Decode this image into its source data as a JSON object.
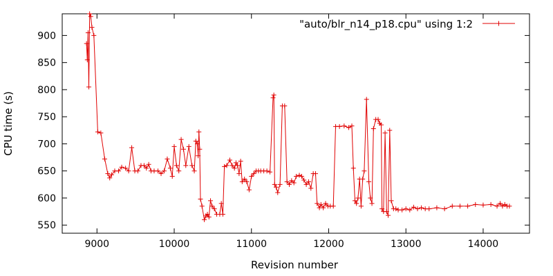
{
  "chart_data": {
    "type": "line",
    "xlabel": "Revision number",
    "ylabel": "CPU time (s)",
    "xlim": [
      8550,
      14600
    ],
    "ylim": [
      535,
      940
    ],
    "x_ticks": [
      9000,
      10000,
      11000,
      12000,
      13000,
      14000
    ],
    "y_ticks": [
      550,
      600,
      650,
      700,
      750,
      800,
      850,
      900
    ],
    "grid": false,
    "legend_position": "top-right",
    "series": [
      {
        "name": "\"auto/blr_n14_p18.cpu\" using 1:2",
        "color": "#e00000",
        "marker": "plus",
        "points": [
          [
            8865,
            885
          ],
          [
            8875,
            855
          ],
          [
            8885,
            905
          ],
          [
            8895,
            805
          ],
          [
            8905,
            940
          ],
          [
            8920,
            935
          ],
          [
            8935,
            915
          ],
          [
            8960,
            900
          ],
          [
            9010,
            722
          ],
          [
            9050,
            720
          ],
          [
            9100,
            672
          ],
          [
            9140,
            645
          ],
          [
            9165,
            637
          ],
          [
            9190,
            643
          ],
          [
            9230,
            650
          ],
          [
            9280,
            650
          ],
          [
            9320,
            657
          ],
          [
            9370,
            655
          ],
          [
            9410,
            650
          ],
          [
            9450,
            693
          ],
          [
            9490,
            650
          ],
          [
            9530,
            650
          ],
          [
            9570,
            660
          ],
          [
            9610,
            660
          ],
          [
            9640,
            655
          ],
          [
            9670,
            662
          ],
          [
            9700,
            650
          ],
          [
            9740,
            650
          ],
          [
            9790,
            650
          ],
          [
            9830,
            645
          ],
          [
            9870,
            650
          ],
          [
            9910,
            672
          ],
          [
            9950,
            655
          ],
          [
            9975,
            640
          ],
          [
            10000,
            695
          ],
          [
            10030,
            660
          ],
          [
            10060,
            650
          ],
          [
            10090,
            708
          ],
          [
            10120,
            690
          ],
          [
            10150,
            660
          ],
          [
            10190,
            695
          ],
          [
            10230,
            660
          ],
          [
            10260,
            650
          ],
          [
            10280,
            705
          ],
          [
            10300,
            700
          ],
          [
            10310,
            678
          ],
          [
            10320,
            722
          ],
          [
            10330,
            690
          ],
          [
            10340,
            598
          ],
          [
            10360,
            585
          ],
          [
            10390,
            560
          ],
          [
            10410,
            567
          ],
          [
            10430,
            570
          ],
          [
            10450,
            565
          ],
          [
            10470,
            595
          ],
          [
            10490,
            585
          ],
          [
            10520,
            580
          ],
          [
            10550,
            570
          ],
          [
            10590,
            570
          ],
          [
            10610,
            590
          ],
          [
            10630,
            570
          ],
          [
            10650,
            658
          ],
          [
            10680,
            660
          ],
          [
            10720,
            670
          ],
          [
            10750,
            660
          ],
          [
            10780,
            655
          ],
          [
            10800,
            665
          ],
          [
            10820,
            660
          ],
          [
            10840,
            645
          ],
          [
            10860,
            668
          ],
          [
            10880,
            630
          ],
          [
            10910,
            635
          ],
          [
            10940,
            630
          ],
          [
            10970,
            615
          ],
          [
            11000,
            640
          ],
          [
            11030,
            645
          ],
          [
            11060,
            650
          ],
          [
            11090,
            650
          ],
          [
            11120,
            650
          ],
          [
            11160,
            650
          ],
          [
            11200,
            650
          ],
          [
            11240,
            648
          ],
          [
            11280,
            785
          ],
          [
            11290,
            790
          ],
          [
            11300,
            625
          ],
          [
            11320,
            620
          ],
          [
            11340,
            610
          ],
          [
            11370,
            625
          ],
          [
            11400,
            770
          ],
          [
            11430,
            770
          ],
          [
            11460,
            630
          ],
          [
            11490,
            625
          ],
          [
            11520,
            632
          ],
          [
            11550,
            628
          ],
          [
            11580,
            640
          ],
          [
            11620,
            642
          ],
          [
            11650,
            640
          ],
          [
            11680,
            633
          ],
          [
            11710,
            625
          ],
          [
            11740,
            630
          ],
          [
            11770,
            618
          ],
          [
            11800,
            645
          ],
          [
            11830,
            645
          ],
          [
            11850,
            590
          ],
          [
            11880,
            582
          ],
          [
            11900,
            588
          ],
          [
            11930,
            582
          ],
          [
            11960,
            590
          ],
          [
            11990,
            585
          ],
          [
            12020,
            585
          ],
          [
            12060,
            585
          ],
          [
            12090,
            732
          ],
          [
            12140,
            732
          ],
          [
            12200,
            733
          ],
          [
            12260,
            730
          ],
          [
            12300,
            733
          ],
          [
            12320,
            655
          ],
          [
            12340,
            595
          ],
          [
            12360,
            590
          ],
          [
            12380,
            600
          ],
          [
            12400,
            635
          ],
          [
            12420,
            585
          ],
          [
            12440,
            635
          ],
          [
            12460,
            650
          ],
          [
            12490,
            782
          ],
          [
            12520,
            630
          ],
          [
            12540,
            600
          ],
          [
            12560,
            590
          ],
          [
            12580,
            728
          ],
          [
            12610,
            745
          ],
          [
            12640,
            745
          ],
          [
            12660,
            738
          ],
          [
            12680,
            735
          ],
          [
            12690,
            580
          ],
          [
            12710,
            575
          ],
          [
            12730,
            720
          ],
          [
            12750,
            575
          ],
          [
            12770,
            568
          ],
          [
            12790,
            725
          ],
          [
            12810,
            595
          ],
          [
            12840,
            580
          ],
          [
            12870,
            580
          ],
          [
            12900,
            578
          ],
          [
            12950,
            578
          ],
          [
            13000,
            580
          ],
          [
            13050,
            578
          ],
          [
            13100,
            583
          ],
          [
            13150,
            580
          ],
          [
            13200,
            582
          ],
          [
            13250,
            580
          ],
          [
            13300,
            580
          ],
          [
            13400,
            582
          ],
          [
            13500,
            580
          ],
          [
            13600,
            585
          ],
          [
            13700,
            585
          ],
          [
            13800,
            585
          ],
          [
            13900,
            588
          ],
          [
            14000,
            587
          ],
          [
            14100,
            588
          ],
          [
            14180,
            585
          ],
          [
            14220,
            590
          ],
          [
            14250,
            585
          ],
          [
            14280,
            588
          ],
          [
            14310,
            585
          ],
          [
            14340,
            585
          ]
        ]
      }
    ]
  }
}
